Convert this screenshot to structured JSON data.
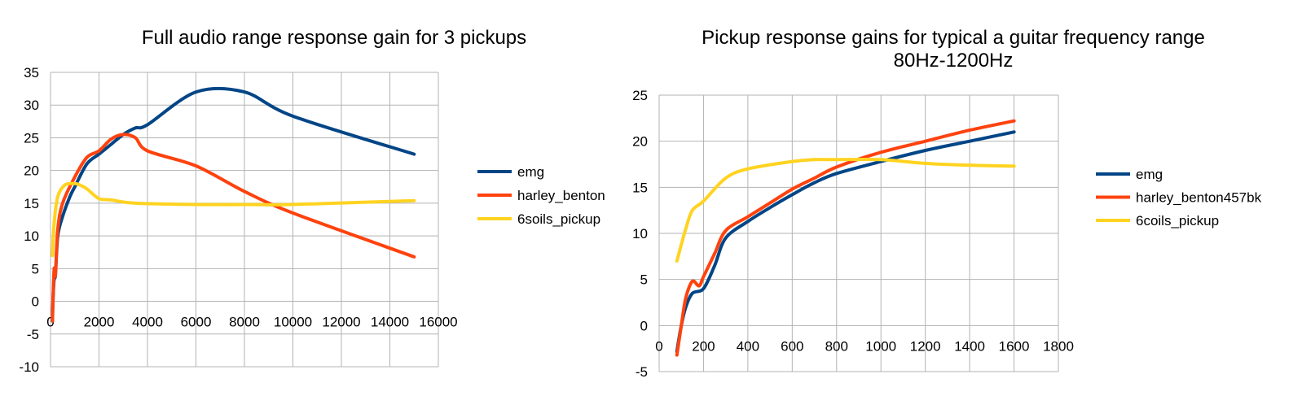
{
  "colors": {
    "emg": "#004586",
    "harley": "#ff420e",
    "coils": "#ffd320",
    "grid": "#b3b3b3"
  },
  "chart_data": [
    {
      "type": "line",
      "title": "Full audio range response gain for 3 pickups",
      "xlabel": "",
      "ylabel": "",
      "xlim": [
        0,
        16000
      ],
      "ylim": [
        -10,
        35
      ],
      "xticks": [
        0,
        2000,
        4000,
        6000,
        8000,
        10000,
        12000,
        14000,
        16000
      ],
      "yticks": [
        -10,
        -5,
        0,
        5,
        10,
        15,
        20,
        25,
        30,
        35
      ],
      "grid": true,
      "legend": "right",
      "series": [
        {
          "name": "emg",
          "points": [
            [
              80,
              -3
            ],
            [
              100,
              0
            ],
            [
              150,
              3.5
            ],
            [
              200,
              4
            ],
            [
              300,
              10
            ],
            [
              500,
              13
            ],
            [
              800,
              16
            ],
            [
              1000,
              17.5
            ],
            [
              1500,
              21
            ],
            [
              2000,
              22.5
            ],
            [
              2500,
              24
            ],
            [
              3000,
              25.5
            ],
            [
              3500,
              26.5
            ],
            [
              4000,
              27
            ],
            [
              6000,
              32
            ],
            [
              8000,
              32
            ],
            [
              10000,
              28.3
            ],
            [
              15000,
              22.5
            ]
          ]
        },
        {
          "name": "harley_benton",
          "points": [
            [
              80,
              -3
            ],
            [
              100,
              0
            ],
            [
              150,
              5
            ],
            [
              200,
              4
            ],
            [
              300,
              11
            ],
            [
              500,
              15
            ],
            [
              1000,
              19
            ],
            [
              1500,
              22
            ],
            [
              2000,
              23
            ],
            [
              2500,
              24.8
            ],
            [
              3000,
              25.5
            ],
            [
              3500,
              25
            ],
            [
              4000,
              23
            ],
            [
              6000,
              20.7
            ],
            [
              8000,
              16.8
            ],
            [
              10000,
              13.5
            ],
            [
              15000,
              6.8
            ]
          ]
        },
        {
          "name": "6soils_pickup",
          "points": [
            [
              80,
              7
            ],
            [
              150,
              12
            ],
            [
              300,
              16
            ],
            [
              600,
              17.8
            ],
            [
              1000,
              18
            ],
            [
              1200,
              17.8
            ],
            [
              1500,
              17.2
            ],
            [
              2000,
              15.7
            ],
            [
              2500,
              15.5
            ],
            [
              3500,
              15
            ],
            [
              6000,
              14.8
            ],
            [
              8000,
              14.8
            ],
            [
              10000,
              14.8
            ],
            [
              15000,
              15.4
            ]
          ]
        }
      ]
    },
    {
      "type": "line",
      "title": "Pickup response gains for typical a guitar frequency range",
      "subtitle": "80Hz-1200Hz",
      "xlabel": "",
      "ylabel": "",
      "xlim": [
        0,
        1800
      ],
      "ylim": [
        -5,
        25
      ],
      "xticks": [
        0,
        200,
        400,
        600,
        800,
        1000,
        1200,
        1400,
        1600,
        1800
      ],
      "yticks": [
        -5,
        0,
        5,
        10,
        15,
        20,
        25
      ],
      "grid": true,
      "legend": "right",
      "series": [
        {
          "name": "emg",
          "points": [
            [
              80,
              -2.8
            ],
            [
              100,
              0
            ],
            [
              120,
              2
            ],
            [
              150,
              3.5
            ],
            [
              200,
              4
            ],
            [
              250,
              6.5
            ],
            [
              300,
              9.5
            ],
            [
              400,
              11.3
            ],
            [
              500,
              12.8
            ],
            [
              600,
              14.2
            ],
            [
              700,
              15.5
            ],
            [
              800,
              16.5
            ],
            [
              1000,
              17.8
            ],
            [
              1200,
              19
            ],
            [
              1400,
              20
            ],
            [
              1600,
              21
            ]
          ]
        },
        {
          "name": "harley_benton457bk",
          "points": [
            [
              80,
              -3.2
            ],
            [
              100,
              0
            ],
            [
              120,
              3
            ],
            [
              150,
              4.8
            ],
            [
              180,
              4.3
            ],
            [
              200,
              5.3
            ],
            [
              250,
              7.8
            ],
            [
              300,
              10.3
            ],
            [
              400,
              11.8
            ],
            [
              500,
              13.3
            ],
            [
              600,
              14.8
            ],
            [
              700,
              16
            ],
            [
              800,
              17.2
            ],
            [
              1000,
              18.8
            ],
            [
              1200,
              20
            ],
            [
              1400,
              21.2
            ],
            [
              1600,
              22.2
            ]
          ]
        },
        {
          "name": "6coils_pickup",
          "points": [
            [
              80,
              7
            ],
            [
              120,
              10.5
            ],
            [
              150,
              12.5
            ],
            [
              200,
              13.5
            ],
            [
              300,
              16
            ],
            [
              400,
              17
            ],
            [
              600,
              17.8
            ],
            [
              700,
              18
            ],
            [
              800,
              18
            ],
            [
              1000,
              18
            ],
            [
              1200,
              17.6
            ],
            [
              1400,
              17.4
            ],
            [
              1600,
              17.3
            ]
          ]
        }
      ]
    }
  ]
}
